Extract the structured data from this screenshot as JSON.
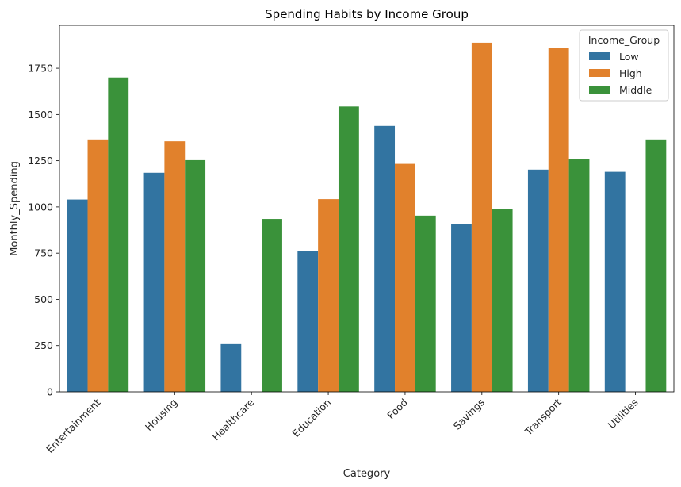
{
  "chart_data": {
    "type": "bar",
    "title": "Spending Habits by Income Group",
    "xlabel": "Category",
    "ylabel": "Monthly_Spending",
    "categories": [
      "Entertainment",
      "Housing",
      "Healthcare",
      "Education",
      "Food",
      "Savings",
      "Transport",
      "Utilities"
    ],
    "series": [
      {
        "name": "Low",
        "color": "#3274a1",
        "values": [
          1040,
          1185,
          258,
          760,
          1438,
          908,
          1202,
          1190
        ]
      },
      {
        "name": "High",
        "color": "#e1812c",
        "values": [
          1365,
          1355,
          null,
          1042,
          1233,
          1888,
          1860,
          null
        ]
      },
      {
        "name": "Middle",
        "color": "#3a923a",
        "values": [
          1700,
          1253,
          935,
          1543,
          953,
          990,
          1258,
          1365
        ]
      }
    ],
    "yticks": [
      0,
      250,
      500,
      750,
      1000,
      1250,
      1500,
      1750
    ],
    "ylim": [
      0,
      1982
    ],
    "legend": {
      "title": "Income_Group",
      "placement": "top-right"
    },
    "grid": false
  }
}
